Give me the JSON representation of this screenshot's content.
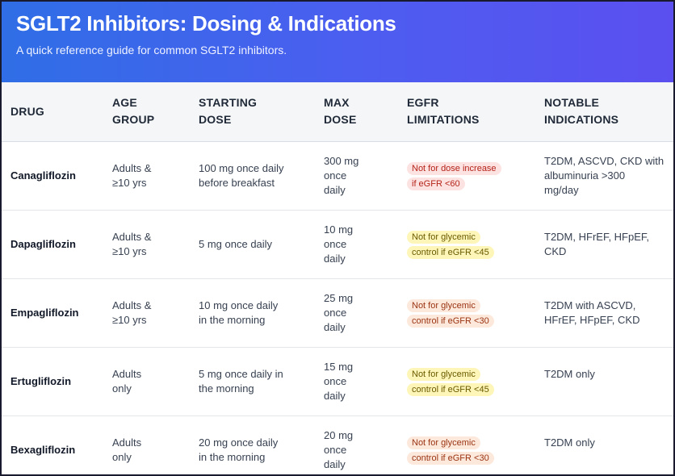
{
  "header": {
    "title": "SGLT2 Inhibitors: Dosing & Indications",
    "subtitle": "A quick reference guide for common SGLT2 inhibitors."
  },
  "table": {
    "columns": [
      {
        "line1": "DRUG",
        "line2": ""
      },
      {
        "line1": "AGE",
        "line2": "GROUP"
      },
      {
        "line1": "STARTING",
        "line2": "DOSE"
      },
      {
        "line1": "MAX",
        "line2": "DOSE"
      },
      {
        "line1": "EGFR",
        "line2": "LIMITATIONS"
      },
      {
        "line1": "NOTABLE",
        "line2": "INDICATIONS"
      }
    ],
    "rows": [
      {
        "drug": "Canagliflozin",
        "age": [
          "Adults &",
          "≥10 yrs"
        ],
        "start": [
          "100 mg once daily",
          "before breakfast"
        ],
        "max": [
          "300 mg",
          "once",
          "daily"
        ],
        "egfr": [
          "Not for dose increase",
          "if eGFR <60"
        ],
        "egfr_color": "#fde2e2",
        "indications": [
          "T2DM, ASCVD, CKD with",
          "albuminuria >300",
          "mg/day"
        ]
      },
      {
        "drug": "Dapagliflozin",
        "age": [
          "Adults &",
          "≥10 yrs"
        ],
        "start": [
          "5 mg once daily",
          ""
        ],
        "max": [
          "10 mg",
          "once",
          "daily"
        ],
        "egfr": [
          "Not for glycemic",
          "control if eGFR <45"
        ],
        "egfr_color": "#fef6b8",
        "indications": [
          "T2DM, HFrEF, HFpEF,",
          "CKD",
          ""
        ]
      },
      {
        "drug": "Empagliflozin",
        "age": [
          "Adults &",
          "≥10 yrs"
        ],
        "start": [
          "10 mg once daily",
          "in the morning"
        ],
        "max": [
          "25 mg",
          "once",
          "daily"
        ],
        "egfr": [
          "Not for glycemic",
          "control if eGFR <30"
        ],
        "egfr_color": "#fde8dc",
        "indications": [
          "T2DM with ASCVD,",
          "HFrEF, HFpEF, CKD",
          ""
        ]
      },
      {
        "drug": "Ertugliflozin",
        "age": [
          "Adults",
          "only"
        ],
        "start": [
          "5 mg once daily in",
          "the morning"
        ],
        "max": [
          "15 mg",
          "once",
          "daily"
        ],
        "egfr": [
          "Not for glycemic",
          "control if eGFR <45"
        ],
        "egfr_color": "#fef6b8",
        "indications": [
          "T2DM only",
          "",
          ""
        ]
      },
      {
        "drug": "Bexagliflozin",
        "age": [
          "Adults",
          "only"
        ],
        "start": [
          "20 mg once daily",
          "in the morning"
        ],
        "max": [
          "20 mg",
          "once",
          "daily"
        ],
        "egfr": [
          "Not for glycemic",
          "control if eGFR <30"
        ],
        "egfr_color": "#fde8dc",
        "indications": [
          "T2DM only",
          "",
          ""
        ]
      }
    ]
  }
}
